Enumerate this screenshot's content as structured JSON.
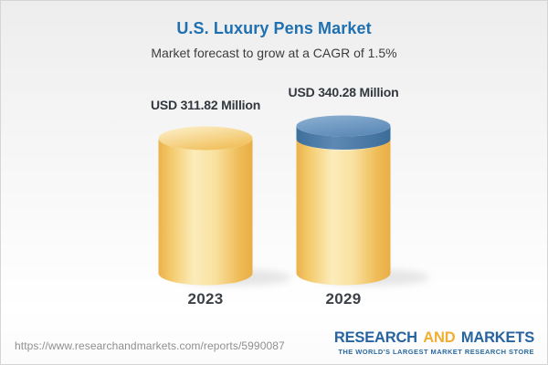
{
  "page": {
    "title": "U.S. Luxury Pens Market",
    "subtitle": "Market forecast to grow at a CAGR of 1.5%"
  },
  "chart_data": {
    "type": "bar",
    "title": "U.S. Luxury Pens Market",
    "subtitle": "Market forecast to grow at a CAGR of 1.5%",
    "categories": [
      "2023",
      "2029"
    ],
    "values": [
      311.82,
      340.28
    ],
    "value_labels": [
      "USD 311.82 Million",
      "USD 340.28 Million"
    ],
    "unit": "USD Million",
    "cagr": "1.5%",
    "legend": "none",
    "grid": "off",
    "bar_style": "3d-cylinder",
    "bar_color": "#f5c768",
    "growth_cap_color": "#55809f",
    "ylim": [
      0,
      340.28
    ]
  },
  "footer": {
    "url": "https://www.researchandmarkets.com/reports/5990087",
    "logo": {
      "research": "RESEARCH",
      "and": "AND",
      "markets": "MARKETS",
      "tagline": "THE WORLD'S LARGEST MARKET RESEARCH STORE"
    }
  }
}
